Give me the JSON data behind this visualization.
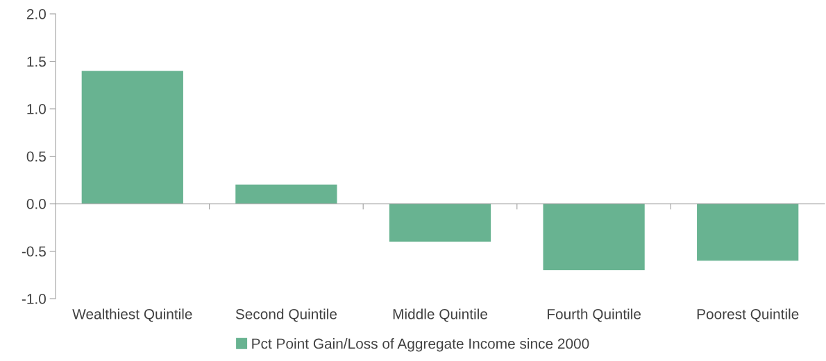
{
  "chart_data": {
    "type": "bar",
    "categories": [
      "Wealthiest Quintile",
      "Second Quintile",
      "Middle Quintile",
      "Fourth Quintile",
      "Poorest Quintile"
    ],
    "series": [
      {
        "name": "Pct Point Gain/Loss of Aggregate Income since 2000",
        "color": "#68b391",
        "values": [
          1.4,
          0.2,
          -0.4,
          -0.7,
          -0.6
        ]
      }
    ],
    "ylim": [
      -1.0,
      2.0
    ],
    "yticks": [
      {
        "value": -1.0,
        "label": "-1.0"
      },
      {
        "value": -0.5,
        "label": "-0.5"
      },
      {
        "value": 0.0,
        "label": "0.0"
      },
      {
        "value": 0.5,
        "label": "0.5"
      },
      {
        "value": 1.0,
        "label": "1.0"
      },
      {
        "value": 1.5,
        "label": "1.5"
      },
      {
        "value": 2.0,
        "label": "2.0"
      }
    ],
    "legend": "bottom"
  }
}
